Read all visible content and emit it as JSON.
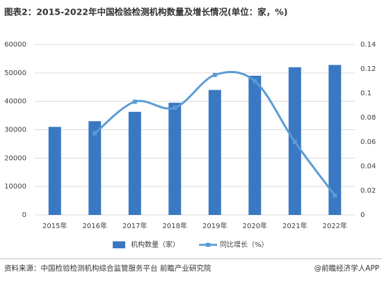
{
  "chart_data": {
    "type": "bar",
    "title": "图表2：2015-2022年中国检验检测机构数量及增长情况(单位：家，%)",
    "categories": [
      "2015年",
      "2016年",
      "2017年",
      "2018年",
      "2019年",
      "2020年",
      "2021年",
      "2022年"
    ],
    "series": [
      {
        "name": "机构数量（家）",
        "type": "bar",
        "color": "#3a78c3",
        "values": [
          31000,
          33000,
          36300,
          39500,
          44000,
          49000,
          52000,
          52800
        ]
      },
      {
        "name": "同比增长（%）",
        "type": "line",
        "axis": "y2",
        "color": "#5b9bd5",
        "values": [
          null,
          0.067,
          0.093,
          0.088,
          0.115,
          0.11,
          0.06,
          0.016
        ]
      }
    ],
    "ylim": [
      0,
      60000
    ],
    "yticks": [
      0,
      10000,
      20000,
      30000,
      40000,
      50000,
      60000
    ],
    "y2lim": [
      0,
      0.14
    ],
    "y2ticks": [
      0,
      0.02,
      0.04,
      0.06,
      0.08,
      0.1,
      0.12,
      0.14
    ],
    "grid": true,
    "legend": "bottom",
    "source": "资料来源：中国检验检测机构综合监管服务平台 前瞻产业研究院",
    "credit": "@前瞻经济学人APP"
  }
}
